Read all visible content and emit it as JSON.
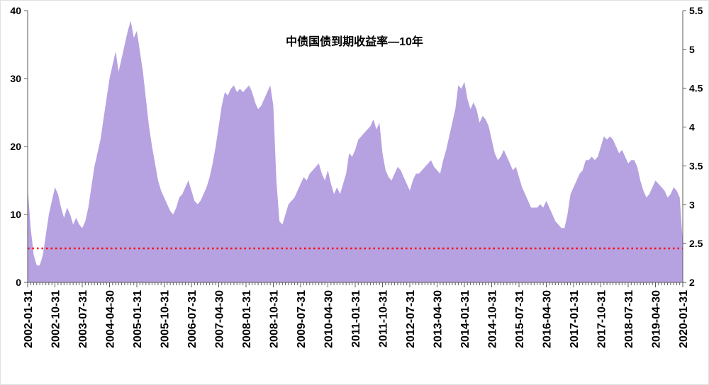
{
  "page": {
    "background": "#ffffff"
  },
  "chart_data": {
    "type": "area",
    "title": "中债国债到期收益率—10年",
    "series_name": "中债国债到期收益率—10年",
    "x_frequency": "monthly",
    "x_start": "2002-01-31",
    "x_end": "2020-01-31",
    "x_tick_labels": [
      "2002-01-31",
      "2002-10-31",
      "2003-07-31",
      "2004-04-30",
      "2005-01-31",
      "2005-10-31",
      "2006-07-31",
      "2007-04-30",
      "2008-01-31",
      "2008-10-31",
      "2009-07-31",
      "2010-04-30",
      "2011-01-31",
      "2011-10-31",
      "2012-07-31",
      "2013-04-30",
      "2014-01-31",
      "2014-10-31",
      "2015-07-31",
      "2016-04-30",
      "2017-01-31",
      "2017-10-31",
      "2018-07-31",
      "2019-04-30",
      "2020-01-31"
    ],
    "x_tick_label_step": 9,
    "y_axis_left": {
      "min": 0,
      "max": 40,
      "ticks": [
        0,
        10,
        20,
        30,
        40
      ]
    },
    "y_axis_right": {
      "min": 2,
      "max": 5.5,
      "ticks": [
        2,
        2.5,
        3,
        3.5,
        4,
        4.5,
        5,
        5.5
      ]
    },
    "values_left_axis": [
      14,
      8,
      4,
      2.5,
      2.5,
      4,
      7,
      10,
      12,
      14,
      13,
      11,
      9.5,
      11,
      10,
      8.5,
      9.5,
      8.5,
      8,
      9,
      11,
      14,
      17,
      19,
      21,
      24,
      27,
      30,
      32,
      34,
      31,
      33,
      35,
      37,
      38.5,
      36,
      37,
      34,
      31,
      27,
      23,
      20,
      17.5,
      15,
      13.5,
      12.5,
      11.5,
      10.5,
      10,
      11,
      12.5,
      13,
      14,
      15,
      13.5,
      12,
      11.5,
      12,
      13,
      14,
      15.5,
      17.5,
      20,
      23,
      26,
      28,
      27.5,
      28.5,
      29,
      28,
      28.5,
      28,
      28.5,
      29,
      28,
      26.5,
      25.5,
      26,
      27,
      28,
      29,
      26,
      15,
      9,
      8.5,
      10,
      11.5,
      12,
      12.5,
      13.5,
      14.5,
      15.5,
      15,
      16,
      16.5,
      17,
      17.5,
      16,
      15,
      16.5,
      14.5,
      13,
      14,
      13,
      14.5,
      16,
      19,
      18.5,
      19.5,
      21,
      21.5,
      22,
      22.5,
      23,
      24,
      22.5,
      23.5,
      19,
      16.5,
      15.5,
      15,
      16,
      17,
      16.5,
      15.5,
      14.5,
      13.5,
      15,
      16,
      16,
      16.5,
      17,
      17.5,
      18,
      17,
      16.5,
      16,
      18,
      19.5,
      21.5,
      23.5,
      25.5,
      29,
      28.5,
      29.5,
      27,
      25.5,
      26.5,
      25.5,
      23.5,
      24.5,
      24,
      23,
      21,
      19,
      18,
      18.5,
      19.5,
      18.5,
      17.5,
      16.5,
      17,
      15.5,
      14,
      13,
      12,
      11,
      11,
      11,
      11.5,
      11,
      12,
      11,
      10,
      9,
      8.5,
      8,
      8,
      10,
      13,
      14,
      15,
      16,
      16.5,
      18,
      18,
      18.5,
      18,
      18.5,
      20,
      21.5,
      21,
      21.5,
      21,
      20,
      19,
      19.5,
      18.5,
      17.5,
      18,
      18,
      17,
      15,
      13.5,
      12.5,
      13,
      14,
      15,
      14.5,
      14,
      13.5,
      12.5,
      13,
      14,
      13.5,
      12.5,
      6
    ],
    "reference_line": {
      "value_left_axis": 5,
      "value_right_axis": 2.44,
      "style": "dotted",
      "color": "#ff0000"
    },
    "area_color": "#b6a1e1",
    "axis_color": "#595959",
    "grid": false,
    "legend": false
  }
}
